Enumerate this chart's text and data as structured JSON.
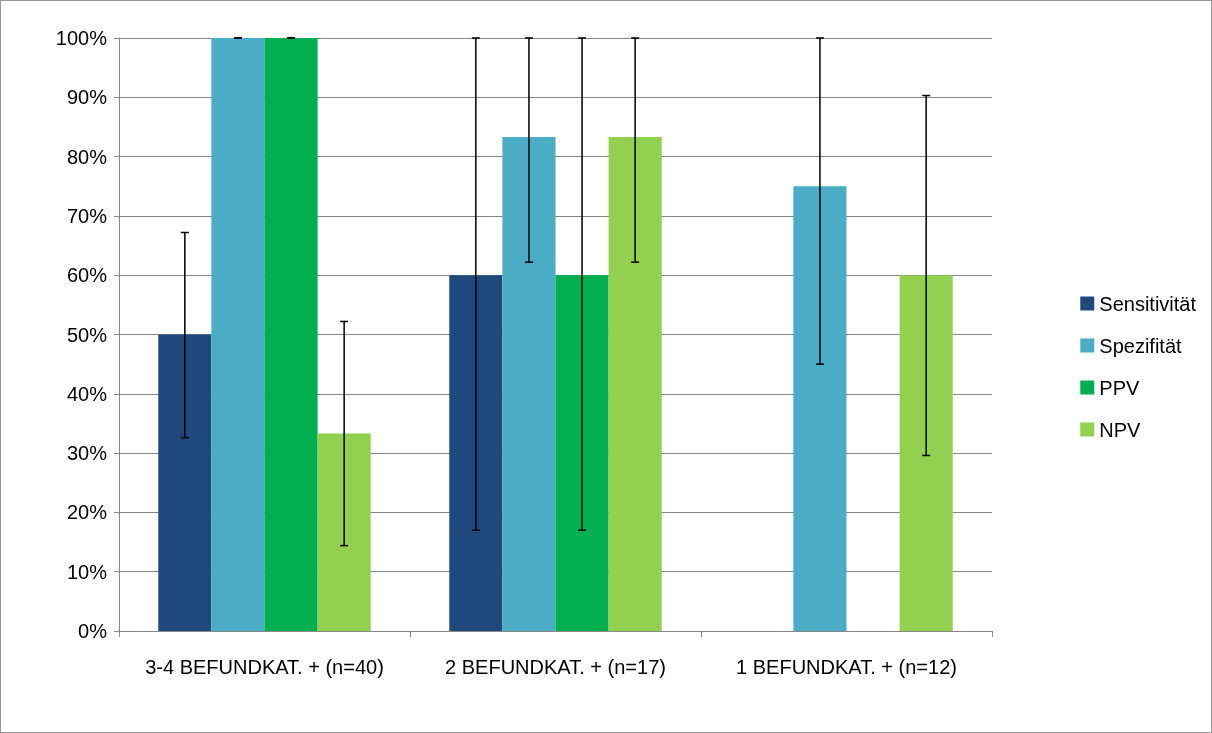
{
  "chart_data": {
    "type": "bar",
    "categories": [
      "3-4 BEFUNDKAT. + (n=40)",
      "2 BEFUNDKAT. + (n=17)",
      "1 BEFUNDKAT. + (n=12)"
    ],
    "series": [
      {
        "name": "Sensitivität",
        "color": "#1f497d",
        "values": [
          50,
          60,
          0
        ],
        "errors": [
          [
            32.6,
            67.2
          ],
          [
            17,
            100
          ],
          null
        ]
      },
      {
        "name": "Spezifität",
        "color": "#4bacc6",
        "values": [
          100,
          83.3,
          75
        ],
        "errors": [
          [
            100,
            100
          ],
          [
            62.2,
            100
          ],
          [
            45,
            100
          ]
        ]
      },
      {
        "name": "PPV",
        "color": "#00b050",
        "values": [
          100,
          60,
          0
        ],
        "errors": [
          [
            100,
            100
          ],
          [
            17,
            100
          ],
          null
        ]
      },
      {
        "name": "NPV",
        "color": "#92d050",
        "values": [
          33.3,
          83.3,
          60
        ],
        "errors": [
          [
            14.4,
            52.2
          ],
          [
            62.2,
            100
          ],
          [
            29.6,
            90.3
          ]
        ]
      }
    ],
    "ylim": [
      0,
      100
    ],
    "yticks": [
      {
        "value": 0,
        "label": "0%"
      },
      {
        "value": 10,
        "label": "10%"
      },
      {
        "value": 20,
        "label": "20%"
      },
      {
        "value": 30,
        "label": "30%"
      },
      {
        "value": 40,
        "label": "40%"
      },
      {
        "value": 50,
        "label": "50%"
      },
      {
        "value": 60,
        "label": "60%"
      },
      {
        "value": 70,
        "label": "70%"
      },
      {
        "value": 80,
        "label": "80%"
      },
      {
        "value": 90,
        "label": "90%"
      },
      {
        "value": 100,
        "label": "100%"
      }
    ],
    "grid": "y",
    "legend": "right"
  }
}
